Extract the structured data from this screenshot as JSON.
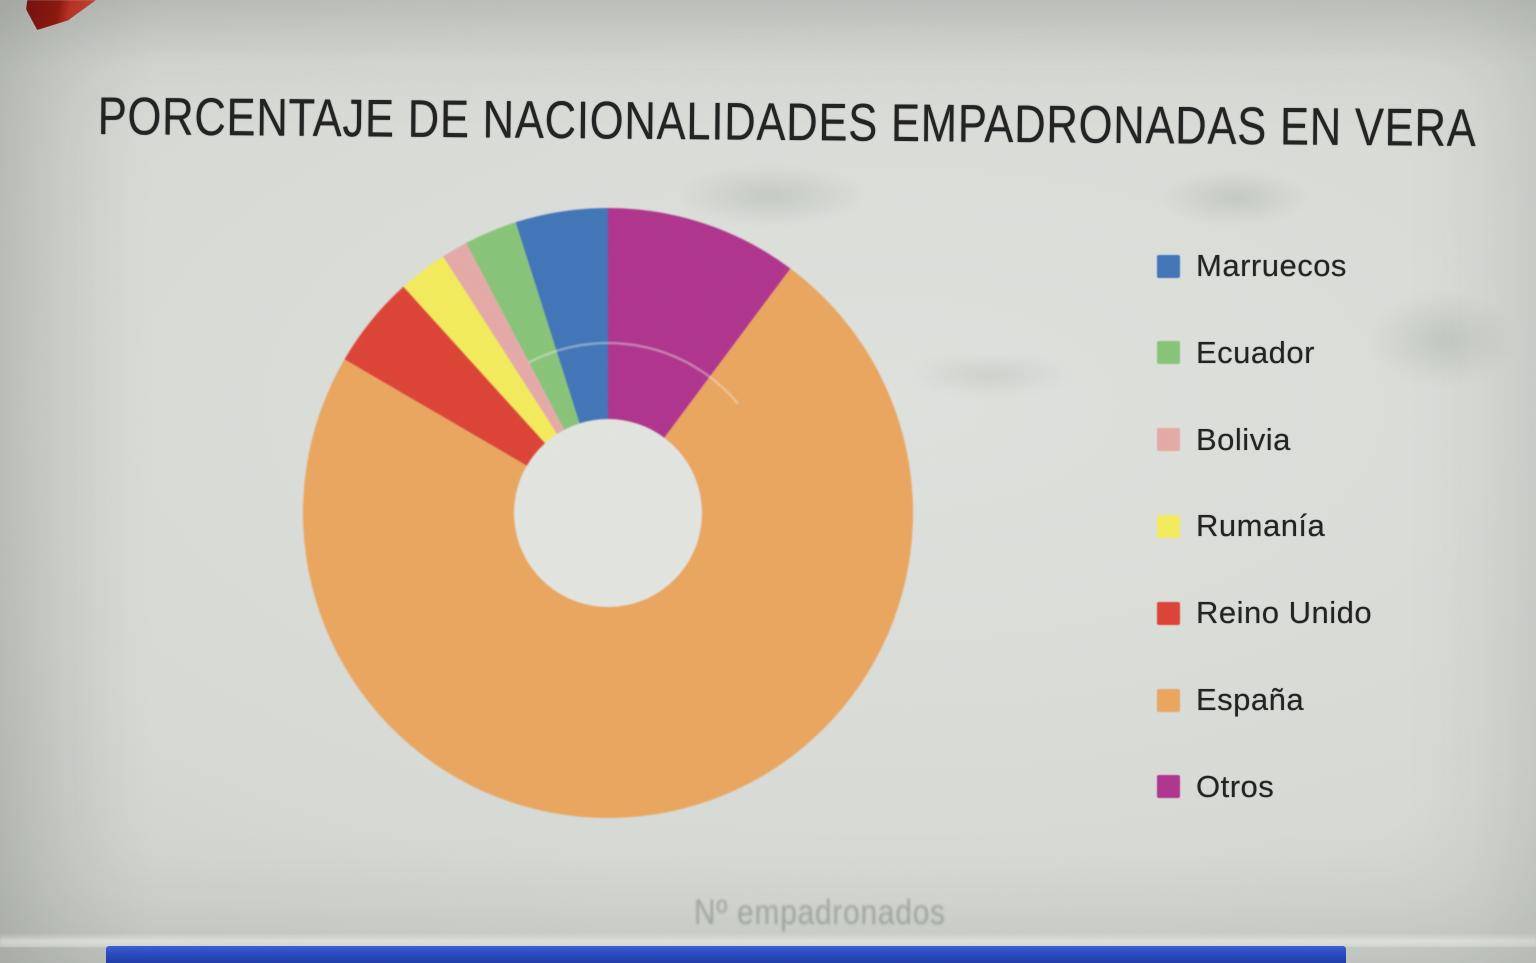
{
  "title": "PORCENTAJE DE NACIONALIDADES EMPADRONADAS EN VERA",
  "chart_data": {
    "type": "pie",
    "style": "donut",
    "title": "PORCENTAJE DE NACIONALIDADES EMPADRONADAS EN VERA",
    "categories": [
      "Marruecos",
      "Ecuador",
      "Bolivia",
      "Rumanía",
      "Reino Unido",
      "España",
      "Otros"
    ],
    "values": [
      4.9,
      2.8,
      1.4,
      2.6,
      4.9,
      73.2,
      10.2
    ],
    "values_note": "percent share estimated from slice angles; the printed chart shows no numeric labels",
    "colors": [
      "#4377b9",
      "#8ac57b",
      "#e5aba8",
      "#f3ec5e",
      "#dd4537",
      "#eaa761",
      "#b1368f"
    ],
    "start_angle_deg": 0,
    "direction": "counterclockwise",
    "inner_radius_ratio": 0.31,
    "legend_position": "right",
    "data_labels": false
  },
  "artifacts": {
    "ghost_text_bottom": "Nº empadronados"
  },
  "accents": {
    "bottom_bar_color": "#2b4ecf",
    "corner_ribbon_color": "#a81e14",
    "background_color": "#d8dbd6",
    "text_color": "#242424"
  }
}
